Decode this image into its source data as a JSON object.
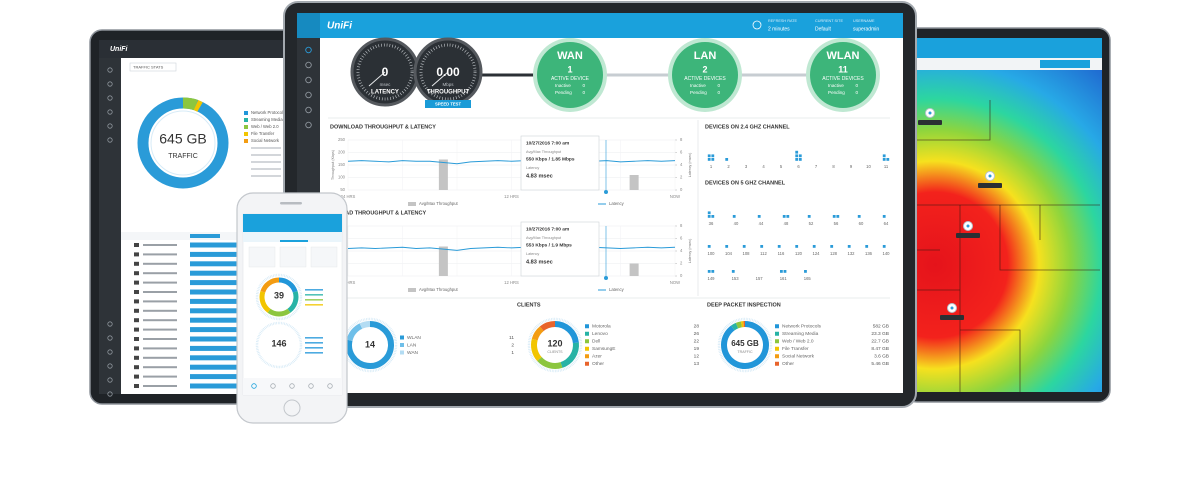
{
  "monitor": {
    "header": {
      "logo": "UniFi",
      "refresh_label": "REFRESH RATE",
      "refresh_value": "2 minutes",
      "site_label": "CURRENT SITE",
      "site_value": "Default",
      "user_label": "USERNAME",
      "user_value": "superadmin"
    },
    "gauges": [
      {
        "value": "0",
        "unit": "msec",
        "label": "LATENCY"
      },
      {
        "value": "0.00",
        "unit": "Mbps",
        "label": "THROUGHPUT"
      }
    ],
    "speed_test": "SPEED TEST",
    "status_labels": {
      "inactive": "Inactive",
      "pending": "Pending"
    },
    "networks": [
      {
        "name": "WAN",
        "count": 1,
        "status": "ACTIVE DEVICE",
        "inactive": 0,
        "pending": 0
      },
      {
        "name": "LAN",
        "count": 2,
        "status": "ACTIVE DEVICES",
        "inactive": 0,
        "pending": 0
      },
      {
        "name": "WLAN",
        "count": 11,
        "status": "ACTIVE DEVICES",
        "inactive": 0,
        "pending": 0
      }
    ]
  },
  "chart_data": [
    {
      "type": "line",
      "title": "DOWNLOAD THROUGHPUT & LATENCY",
      "ylabel": "Throughput (Kbps)",
      "y2label": "Latency (msec)",
      "categories": [
        "24 HRS",
        null,
        null,
        null,
        null,
        null,
        null,
        null,
        null,
        null,
        null,
        null,
        "12 HRS",
        null,
        null,
        null,
        null,
        null,
        null,
        null,
        null,
        null,
        null,
        null,
        "NOW"
      ],
      "ylim": [
        50,
        250
      ],
      "yticks": [
        50,
        100,
        150,
        200,
        250
      ],
      "y2lim": [
        0,
        8
      ],
      "y2ticks": [
        0,
        2,
        4,
        6,
        8
      ],
      "grid": true,
      "series": [
        {
          "name": "Avg/Max Throughput",
          "type": "bar",
          "color": "#c4c4c4",
          "values": [
            null,
            null,
            null,
            null,
            null,
            null,
            null,
            172,
            null,
            null,
            null,
            null,
            null,
            null,
            null,
            null,
            null,
            null,
            null,
            null,
            null,
            110,
            null,
            null,
            null
          ]
        },
        {
          "name": "Latency",
          "color": "#2a9bd8",
          "axis": "y2",
          "values": [
            4.6,
            4.7,
            4.6,
            4.5,
            4.7,
            4.6,
            4.6,
            4.4,
            4.2,
            4.5,
            4.6,
            4.7,
            4.6,
            4.7,
            4.8,
            4.6,
            4.7,
            4.7,
            4.6,
            4.7,
            4.5,
            4.6,
            4.7,
            4.6,
            4.7
          ]
        }
      ],
      "tooltip": {
        "date": "10/27/2016 7:00 am",
        "throughput_label": "Avg/Max Throughput",
        "throughput": "550 Kbps / 1.85 Mbps",
        "latency_label": "Latency",
        "latency": "4.83 msec"
      }
    },
    {
      "type": "line",
      "title": "UPLOAD THROUGHPUT & LATENCY",
      "ylabel": "Throughput (Kbps)",
      "y2label": "Latency (msec)",
      "categories": [
        "24 HRS",
        null,
        null,
        null,
        null,
        null,
        null,
        null,
        null,
        null,
        null,
        null,
        "12 HRS",
        null,
        null,
        null,
        null,
        null,
        null,
        null,
        null,
        null,
        null,
        null,
        "NOW"
      ],
      "ylim": [
        50,
        250
      ],
      "yticks": [
        50,
        100,
        150,
        200,
        250
      ],
      "y2lim": [
        0,
        8
      ],
      "y2ticks": [
        0,
        2,
        4,
        6,
        8
      ],
      "grid": true,
      "series": [
        {
          "name": "Avg/Max Throughput",
          "type": "bar",
          "color": "#c4c4c4",
          "values": [
            null,
            null,
            null,
            null,
            null,
            null,
            null,
            168,
            null,
            null,
            null,
            null,
            null,
            null,
            null,
            null,
            null,
            null,
            null,
            null,
            null,
            100,
            null,
            null,
            null
          ]
        },
        {
          "name": "Latency",
          "color": "#2a9bd8",
          "axis": "y2",
          "values": [
            4.4,
            4.5,
            4.4,
            4.5,
            4.6,
            4.4,
            4.5,
            4.3,
            4.1,
            4.4,
            4.5,
            4.6,
            4.5,
            4.6,
            4.7,
            4.5,
            4.6,
            4.5,
            4.6,
            4.5,
            4.4,
            4.5,
            4.6,
            4.5,
            4.6
          ]
        }
      ],
      "tooltip": {
        "date": "10/27/2016 7:00 am",
        "throughput_label": "Avg/Max Throughput",
        "throughput": "553 Kbps / 1.9 Mbps",
        "latency_label": "Latency",
        "latency": "4.83 msec"
      }
    },
    {
      "type": "dots",
      "title": "DEVICES ON 2.4 GHZ CHANNEL",
      "categories": [
        1,
        2,
        3,
        4,
        5,
        6,
        7,
        8,
        9,
        10,
        11
      ],
      "values": [
        4,
        1,
        0,
        0,
        0,
        5,
        0,
        0,
        0,
        0,
        3
      ],
      "color": "#2a9bd8"
    },
    {
      "type": "dots",
      "title": "DEVICES ON 5 GHZ CHANNEL",
      "categories": [
        36,
        40,
        44,
        48,
        52,
        56,
        60,
        64,
        100,
        104,
        108,
        112,
        116,
        120,
        124,
        128,
        132,
        136,
        140,
        149,
        153,
        157,
        161,
        165
      ],
      "values": [
        3,
        1,
        1,
        2,
        1,
        2,
        1,
        1,
        1,
        1,
        1,
        1,
        1,
        1,
        1,
        1,
        1,
        1,
        1,
        2,
        1,
        0,
        2,
        1
      ],
      "color": "#2a9bd8"
    },
    {
      "type": "donut",
      "center_value": 14,
      "categories": [
        "WLAN",
        "LAN",
        "WAN"
      ],
      "values": [
        11,
        2,
        1
      ],
      "colors": [
        "#2a9bd8",
        "#6fbfe9",
        "#b3dcf3"
      ]
    },
    {
      "type": "donut",
      "title": "CLIENTS",
      "center_value": 120,
      "center_label": "CLIENTS",
      "categories": [
        "Motorola",
        "Lenovo",
        "Dell",
        "SamsungE",
        "Azer",
        "Other"
      ],
      "values": [
        28,
        26,
        22,
        19,
        12,
        13
      ],
      "colors": [
        "#2196d9",
        "#27b3a6",
        "#8cc63f",
        "#f2c500",
        "#f39c12",
        "#e8642c"
      ]
    },
    {
      "type": "donut",
      "title": "DEEP PACKET INSPECTION",
      "center_value": "645 GB",
      "center_label": "TRAFFIC",
      "categories": [
        "Network Protocols",
        "Streaming Media",
        "Web / Web 2.0",
        "File Transfer",
        "Social Network",
        "Other"
      ],
      "values": [
        582,
        23.3,
        22.7,
        8.47,
        3.6,
        5.46
      ],
      "value_labels": [
        "582 GB",
        "23.3 GB",
        "22.7 GB",
        "8.47 GB",
        "3.6 GB",
        "5.46 GB"
      ],
      "colors": [
        "#2196d9",
        "#27b3a6",
        "#8cc63f",
        "#f2c500",
        "#f39c12",
        "#e8642c"
      ]
    }
  ],
  "left_tablet": {
    "logo": "UniFi",
    "selector": "TRAFFIC STATS",
    "center_value": "645 GB",
    "center_label": "TRAFFIC",
    "legend": [
      "Network Protocols",
      "Streaming Media",
      "Web / Web 2.0",
      "File Transfer",
      "Social Network"
    ],
    "colors": [
      "#2196d9",
      "#27b3a6",
      "#8cc63f",
      "#f2c500",
      "#f39c12"
    ]
  },
  "phone": {
    "donuts": [
      "39",
      "146"
    ]
  }
}
